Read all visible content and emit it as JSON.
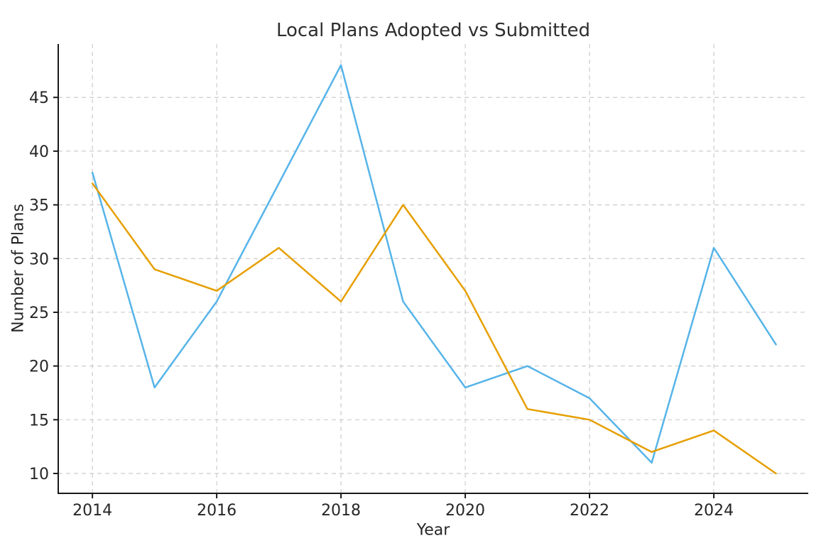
{
  "chart_data": {
    "type": "line",
    "title": "Local Plans Adopted vs Submitted",
    "xlabel": "Year",
    "ylabel": "Number of Plans",
    "x": [
      2014,
      2015,
      2016,
      2017,
      2018,
      2019,
      2020,
      2021,
      2022,
      2023,
      2024,
      2025
    ],
    "series": [
      {
        "name": "blue-series",
        "color": "#56B4E9",
        "values": [
          38,
          18,
          26,
          37,
          48,
          26,
          18,
          20,
          17,
          11,
          31,
          22
        ]
      },
      {
        "name": "orange-series",
        "color": "#E69F00",
        "values": [
          37,
          29,
          27,
          31,
          26,
          35,
          27,
          16,
          15,
          12,
          14,
          10
        ]
      }
    ],
    "x_ticks": [
      2014,
      2016,
      2018,
      2020,
      2022,
      2024
    ],
    "y_ticks": [
      10,
      15,
      20,
      25,
      30,
      35,
      40,
      45
    ],
    "xlim": [
      2013.45,
      2025.52
    ],
    "ylim": [
      8.15,
      49.97
    ],
    "grid": true,
    "grid_style": "dashed",
    "legend": "none",
    "colors": {
      "grid": "#cccccc",
      "spine": "#1a1a1a",
      "tick_label": "#262626",
      "background": "#ffffff"
    }
  }
}
